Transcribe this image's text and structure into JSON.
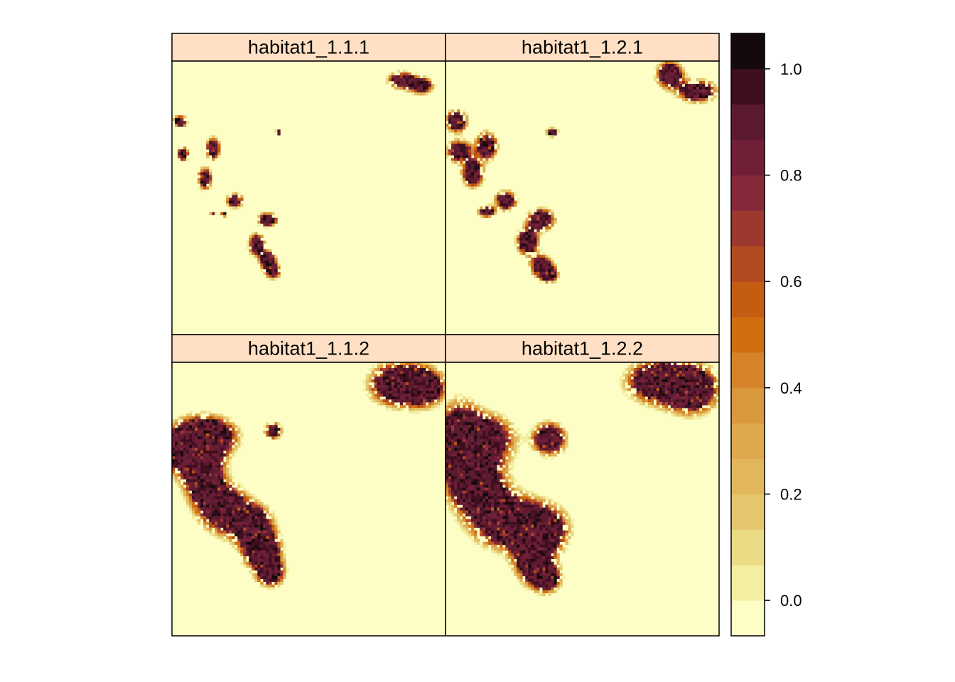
{
  "chart_data": {
    "type": "heatmap",
    "layout": "2x2 panels with shared colorbar on the right",
    "panels": [
      {
        "title": "habitat1_1.1.1",
        "blobs": [
          {
            "cx": 0.84,
            "cy": 0.07,
            "rx": 0.05,
            "ry": 0.03
          },
          {
            "cx": 0.91,
            "cy": 0.09,
            "rx": 0.045,
            "ry": 0.03
          },
          {
            "cx": 0.03,
            "cy": 0.22,
            "rx": 0.025,
            "ry": 0.02
          },
          {
            "cx": 0.04,
            "cy": 0.34,
            "rx": 0.02,
            "ry": 0.025
          },
          {
            "cx": 0.15,
            "cy": 0.32,
            "rx": 0.025,
            "ry": 0.04
          },
          {
            "cx": 0.12,
            "cy": 0.43,
            "rx": 0.025,
            "ry": 0.04
          },
          {
            "cx": 0.23,
            "cy": 0.51,
            "rx": 0.03,
            "ry": 0.025
          },
          {
            "cx": 0.35,
            "cy": 0.58,
            "rx": 0.035,
            "ry": 0.025
          },
          {
            "cx": 0.31,
            "cy": 0.67,
            "rx": 0.03,
            "ry": 0.04
          },
          {
            "cx": 0.35,
            "cy": 0.73,
            "rx": 0.03,
            "ry": 0.035
          },
          {
            "cx": 0.37,
            "cy": 0.77,
            "rx": 0.025,
            "ry": 0.025
          },
          {
            "cx": 0.15,
            "cy": 0.56,
            "rx": 0.01,
            "ry": 0.008
          },
          {
            "cx": 0.19,
            "cy": 0.56,
            "rx": 0.01,
            "ry": 0.008
          },
          {
            "cx": 0.39,
            "cy": 0.26,
            "rx": 0.01,
            "ry": 0.008
          }
        ]
      },
      {
        "title": "habitat1_1.2.1",
        "blobs": [
          {
            "cx": 0.82,
            "cy": 0.05,
            "rx": 0.05,
            "ry": 0.05
          },
          {
            "cx": 0.92,
            "cy": 0.11,
            "rx": 0.07,
            "ry": 0.04
          },
          {
            "cx": 0.04,
            "cy": 0.22,
            "rx": 0.04,
            "ry": 0.04
          },
          {
            "cx": 0.05,
            "cy": 0.33,
            "rx": 0.045,
            "ry": 0.04
          },
          {
            "cx": 0.15,
            "cy": 0.31,
            "rx": 0.04,
            "ry": 0.05
          },
          {
            "cx": 0.1,
            "cy": 0.41,
            "rx": 0.04,
            "ry": 0.05
          },
          {
            "cx": 0.22,
            "cy": 0.51,
            "rx": 0.04,
            "ry": 0.035
          },
          {
            "cx": 0.15,
            "cy": 0.55,
            "rx": 0.03,
            "ry": 0.02
          },
          {
            "cx": 0.35,
            "cy": 0.58,
            "rx": 0.05,
            "ry": 0.04
          },
          {
            "cx": 0.3,
            "cy": 0.66,
            "rx": 0.04,
            "ry": 0.05
          },
          {
            "cx": 0.35,
            "cy": 0.75,
            "rx": 0.04,
            "ry": 0.04
          },
          {
            "cx": 0.38,
            "cy": 0.78,
            "rx": 0.03,
            "ry": 0.03
          },
          {
            "cx": 0.39,
            "cy": 0.26,
            "rx": 0.02,
            "ry": 0.015
          }
        ]
      },
      {
        "title": "habitat1_1.1.2",
        "blobs": [
          {
            "cx": 0.82,
            "cy": 0.08,
            "rx": 0.1,
            "ry": 0.08
          },
          {
            "cx": 0.92,
            "cy": 0.09,
            "rx": 0.08,
            "ry": 0.07
          },
          {
            "cx": 0.06,
            "cy": 0.32,
            "rx": 0.1,
            "ry": 0.1
          },
          {
            "cx": 0.14,
            "cy": 0.27,
            "rx": 0.1,
            "ry": 0.07
          },
          {
            "cx": 0.12,
            "cy": 0.43,
            "rx": 0.07,
            "ry": 0.12
          },
          {
            "cx": 0.2,
            "cy": 0.54,
            "rx": 0.08,
            "ry": 0.09
          },
          {
            "cx": 0.3,
            "cy": 0.6,
            "rx": 0.07,
            "ry": 0.08
          },
          {
            "cx": 0.33,
            "cy": 0.69,
            "rx": 0.07,
            "ry": 0.07
          },
          {
            "cx": 0.36,
            "cy": 0.77,
            "rx": 0.05,
            "ry": 0.05
          },
          {
            "cx": 0.37,
            "cy": 0.25,
            "rx": 0.03,
            "ry": 0.03
          }
        ]
      },
      {
        "title": "habitat1_1.2.2",
        "blobs": [
          {
            "cx": 0.78,
            "cy": 0.07,
            "rx": 0.12,
            "ry": 0.08
          },
          {
            "cx": 0.9,
            "cy": 0.1,
            "rx": 0.1,
            "ry": 0.09
          },
          {
            "cx": 0.05,
            "cy": 0.3,
            "rx": 0.08,
            "ry": 0.15
          },
          {
            "cx": 0.13,
            "cy": 0.28,
            "rx": 0.12,
            "ry": 0.09
          },
          {
            "cx": 0.12,
            "cy": 0.45,
            "rx": 0.1,
            "ry": 0.12
          },
          {
            "cx": 0.22,
            "cy": 0.58,
            "rx": 0.12,
            "ry": 0.1
          },
          {
            "cx": 0.35,
            "cy": 0.61,
            "rx": 0.1,
            "ry": 0.09
          },
          {
            "cx": 0.32,
            "cy": 0.72,
            "rx": 0.07,
            "ry": 0.09
          },
          {
            "cx": 0.37,
            "cy": 0.79,
            "rx": 0.05,
            "ry": 0.05
          },
          {
            "cx": 0.38,
            "cy": 0.28,
            "rx": 0.06,
            "ry": 0.06
          }
        ]
      }
    ],
    "colorbar": {
      "range": [
        -0.0667,
        1.0667
      ],
      "ticks": [
        0.0,
        0.2,
        0.4,
        0.6,
        0.8,
        1.0
      ],
      "tick_labels": [
        "0.0",
        "0.2",
        "0.4",
        "0.6",
        "0.8",
        "1.0"
      ],
      "colors": [
        "#fcfec5",
        "#f3efa1",
        "#ebdb85",
        "#e5c66e",
        "#e2b65b",
        "#dea84c",
        "#da983d",
        "#d6842a",
        "#d06e0f",
        "#c45d12",
        "#b34b22",
        "#9d3830",
        "#85293a",
        "#701f36",
        "#5c1a30",
        "#3e0e20",
        "#140a0c"
      ]
    }
  }
}
